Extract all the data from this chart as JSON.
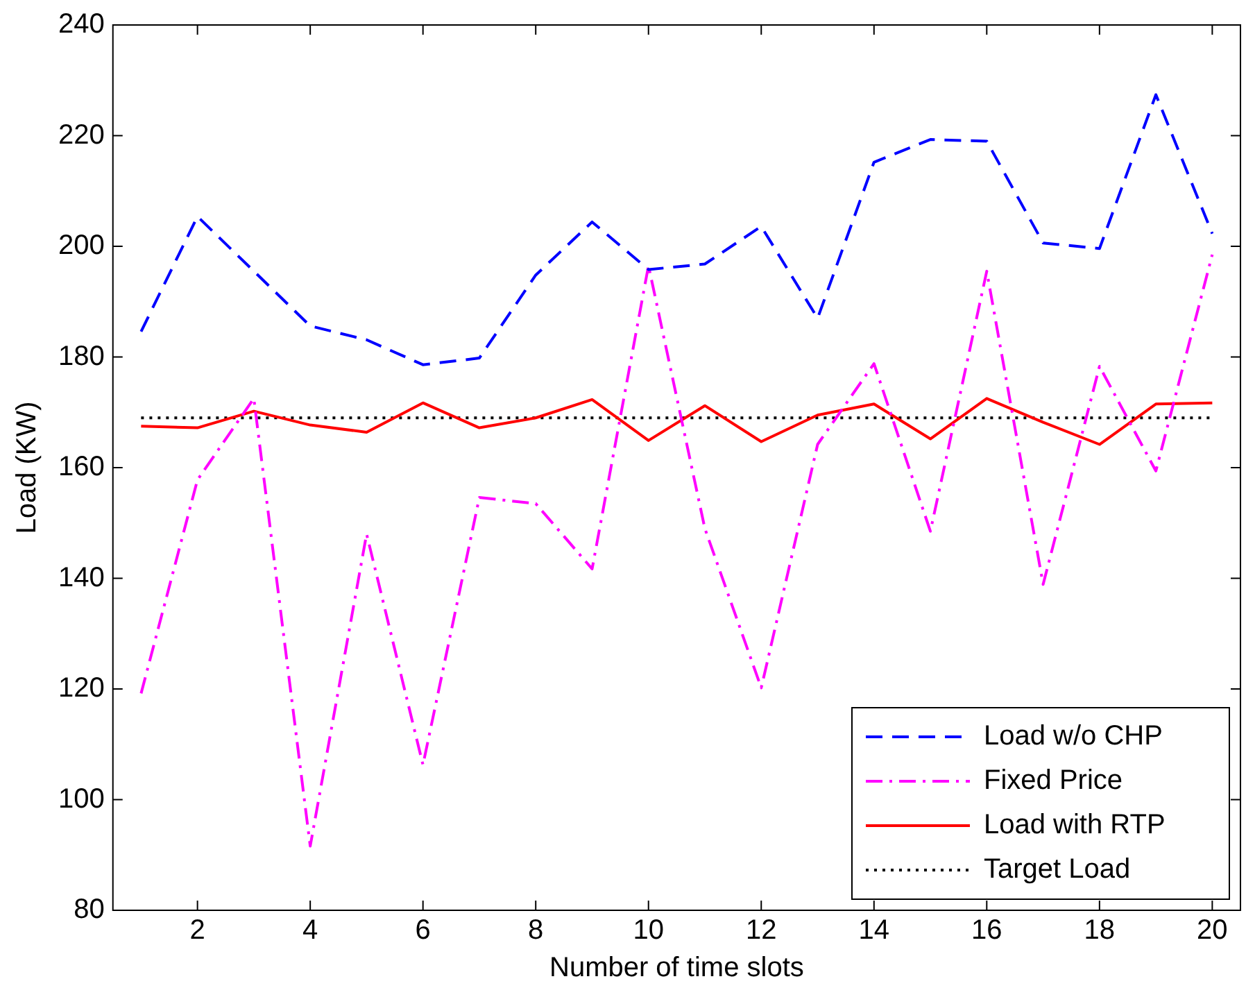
{
  "chart_data": {
    "type": "line",
    "xlabel": "Number of time slots",
    "ylabel": "Load (KW)",
    "x": [
      1,
      2,
      3,
      4,
      5,
      6,
      7,
      8,
      9,
      10,
      11,
      12,
      13,
      14,
      15,
      16,
      17,
      18,
      19,
      20
    ],
    "xlim": [
      0.5,
      20.5
    ],
    "xticks": [
      2,
      4,
      6,
      8,
      10,
      12,
      14,
      16,
      18,
      20
    ],
    "ylim": [
      80,
      240
    ],
    "yticks": [
      80,
      100,
      120,
      140,
      160,
      180,
      200,
      220,
      240
    ],
    "grid": false,
    "legend": "bottom right",
    "marker": "none",
    "series": [
      {
        "name": "Load w/o CHP",
        "color": "#0000ff",
        "line_style": "dashed",
        "values": [
          184.6,
          205.4,
          195.5,
          185.6,
          183.1,
          178.6,
          179.8,
          194.8,
          204.4,
          195.8,
          196.8,
          203.6,
          187,
          215.2,
          219.3,
          219,
          200.6,
          199.6,
          227.4,
          202.3
        ]
      },
      {
        "name": "Fixed Price",
        "color": "#ff00ff",
        "line_style": "dashdot",
        "values": [
          119.2,
          157.8,
          172.5,
          91.6,
          148,
          106.3,
          154.6,
          153.5,
          141.7,
          196.5,
          149,
          120.2,
          164.2,
          178.8,
          148.5,
          195.5,
          138.9,
          178.3,
          159.4,
          198.5
        ]
      },
      {
        "name": "Load with RTP",
        "color": "#ff0000",
        "line_style": "solid",
        "values": [
          167.5,
          167.2,
          170.2,
          167.7,
          166.4,
          171.7,
          167.2,
          169,
          172.3,
          164.9,
          171.2,
          164.7,
          169.5,
          171.5,
          165.2,
          172.5,
          168.2,
          164.2,
          171.5,
          171.7
        ]
      },
      {
        "name": "Target Load",
        "color": "#000000",
        "line_style": "dotted",
        "values": [
          169,
          169,
          169,
          169,
          169,
          169,
          169,
          169,
          169,
          169,
          169,
          169,
          169,
          169,
          169,
          169,
          169,
          169,
          169,
          169
        ]
      }
    ]
  }
}
